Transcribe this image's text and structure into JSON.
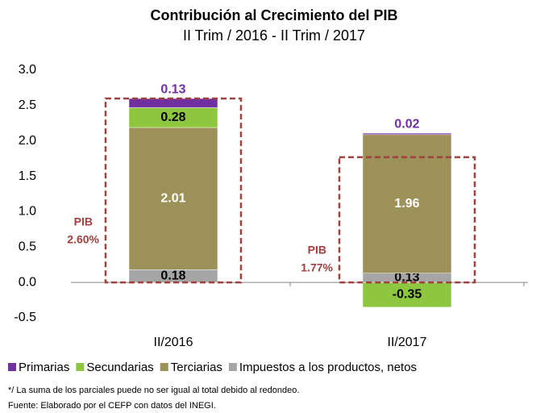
{
  "chart_data": {
    "type": "stacked_bar",
    "title": "Contribución al Crecimiento del PIB",
    "subtitle": "II Trim / 2016 - II Trim / 2017",
    "categories": [
      "II/2016",
      "II/2017"
    ],
    "series": [
      {
        "name": "Impuestos a los productos, netos",
        "color": "#a6a6a6",
        "values": [
          0.18,
          0.13
        ]
      },
      {
        "name": "Terciarias",
        "color": "#9c9158",
        "values": [
          2.01,
          1.96
        ]
      },
      {
        "name": "Secundarias",
        "color": "#8dc63f",
        "values": [
          0.28,
          -0.35
        ]
      },
      {
        "name": "Primarias",
        "color": "#7030a0",
        "values": [
          0.13,
          0.02
        ]
      }
    ],
    "legend_order": [
      "Primarias",
      "Secundarias",
      "Terciarias",
      "Impuestos a los productos, netos"
    ],
    "pib": {
      "name": "PIB",
      "values": [
        2.6,
        1.77
      ],
      "value_labels": [
        "2.60%",
        "1.77%"
      ],
      "color": "#a0403f"
    },
    "ylim": [
      -0.5,
      3.0
    ],
    "yticks": [
      -0.5,
      {
        "value": 0,
        "label": "0.0"
      },
      0.5,
      {
        "value": 1,
        "label": "1.0"
      },
      1.5,
      {
        "value": 2,
        "label": "2.0"
      },
      2.5,
      {
        "value": 3,
        "label": "3.0"
      }
    ],
    "notes": [
      "*/ La suma de los parciales puede no ser igual al total debido al redondeo.",
      "Fuente: Elaborado por el CEFP con datos del INEGI."
    ]
  }
}
